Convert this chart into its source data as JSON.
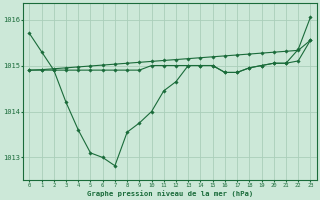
{
  "background_color": "#cce8d8",
  "grid_color": "#aaceba",
  "line_color": "#1a6b3a",
  "title": "Graphe pression niveau de la mer (hPa)",
  "hours": [
    0,
    1,
    2,
    3,
    4,
    5,
    6,
    7,
    8,
    9,
    10,
    11,
    12,
    13,
    14,
    15,
    16,
    17,
    18,
    19,
    20,
    21,
    22,
    23
  ],
  "ylim": [
    1012.5,
    1016.35
  ],
  "yticks": [
    1013,
    1014,
    1015,
    1016
  ],
  "s1": [
    1015.7,
    1015.3,
    1014.9,
    1014.2,
    1013.6,
    1013.1,
    1013.0,
    1012.82,
    1013.55,
    1013.75,
    1014.0,
    1014.45,
    1014.65,
    1015.0,
    1015.0,
    1015.0,
    1014.85,
    1014.85,
    1014.95,
    1015.0,
    1015.05,
    1015.05,
    1015.35,
    1016.05
  ],
  "s2": [
    1014.9,
    1014.9,
    1014.9,
    1014.9,
    1014.9,
    1014.9,
    1014.9,
    1014.9,
    1014.9,
    1014.9,
    1015.0,
    1015.0,
    1015.0,
    1015.0,
    1015.0,
    1015.0,
    1014.85,
    1014.85,
    1014.95,
    1015.0,
    1015.05,
    1015.05,
    1015.1,
    1015.55
  ],
  "s3": [
    1014.9,
    1014.91,
    1014.93,
    1014.95,
    1014.97,
    1014.99,
    1015.01,
    1015.03,
    1015.05,
    1015.07,
    1015.09,
    1015.11,
    1015.13,
    1015.15,
    1015.17,
    1015.19,
    1015.21,
    1015.23,
    1015.25,
    1015.27,
    1015.29,
    1015.31,
    1015.33,
    1015.55
  ],
  "figsize": [
    3.2,
    2.0
  ],
  "dpi": 100
}
